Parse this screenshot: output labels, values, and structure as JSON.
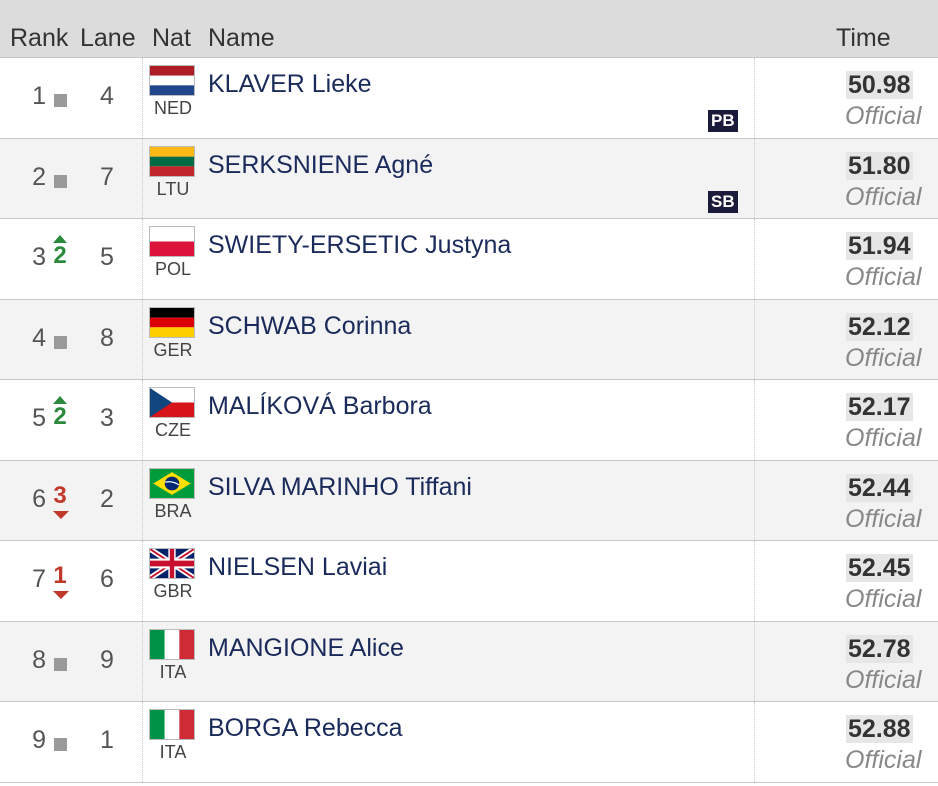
{
  "header": {
    "rank": "Rank",
    "lane": "Lane",
    "nat": "Nat",
    "name": "Name",
    "time": "Time"
  },
  "colors": {
    "up": "#2b8a3e",
    "down": "#c0392b",
    "neutral": "#9a9a9a",
    "name": "#1a2a5a"
  },
  "rows": [
    {
      "rank": "1",
      "change": {
        "dir": "same",
        "value": ""
      },
      "lane": "4",
      "flag": "netherlands-flag-icon",
      "nat": "NED",
      "name": "KLAVER Lieke",
      "badge": "PB",
      "time": "50.98",
      "status": "Official"
    },
    {
      "rank": "2",
      "change": {
        "dir": "same",
        "value": ""
      },
      "lane": "7",
      "flag": "lithuania-flag-icon",
      "nat": "LTU",
      "name": "SERKSNIENE Agné",
      "badge": "SB",
      "time": "51.80",
      "status": "Official"
    },
    {
      "rank": "3",
      "change": {
        "dir": "up",
        "value": "2"
      },
      "lane": "5",
      "flag": "poland-flag-icon",
      "nat": "POL",
      "name": "SWIETY-ERSETIC Justyna",
      "badge": "",
      "time": "51.94",
      "status": "Official"
    },
    {
      "rank": "4",
      "change": {
        "dir": "same",
        "value": ""
      },
      "lane": "8",
      "flag": "germany-flag-icon",
      "nat": "GER",
      "name": "SCHWAB Corinna",
      "badge": "",
      "time": "52.12",
      "status": "Official"
    },
    {
      "rank": "5",
      "change": {
        "dir": "up",
        "value": "2"
      },
      "lane": "3",
      "flag": "czechia-flag-icon",
      "nat": "CZE",
      "name": "MALÍKOVÁ Barbora",
      "badge": "",
      "time": "52.17",
      "status": "Official"
    },
    {
      "rank": "6",
      "change": {
        "dir": "down",
        "value": "3"
      },
      "lane": "2",
      "flag": "brazil-flag-icon",
      "nat": "BRA",
      "name": "SILVA MARINHO Tiffani",
      "badge": "",
      "time": "52.44",
      "status": "Official"
    },
    {
      "rank": "7",
      "change": {
        "dir": "down",
        "value": "1"
      },
      "lane": "6",
      "flag": "united-kingdom-flag-icon",
      "nat": "GBR",
      "name": "NIELSEN Laviai",
      "badge": "",
      "time": "52.45",
      "status": "Official"
    },
    {
      "rank": "8",
      "change": {
        "dir": "same",
        "value": ""
      },
      "lane": "9",
      "flag": "italy-flag-icon",
      "nat": "ITA",
      "name": "MANGIONE Alice",
      "badge": "",
      "time": "52.78",
      "status": "Official"
    },
    {
      "rank": "9",
      "change": {
        "dir": "same",
        "value": ""
      },
      "lane": "1",
      "flag": "italy-flag-icon",
      "nat": "ITA",
      "name": "BORGA Rebecca",
      "badge": "",
      "time": "52.88",
      "status": "Official"
    }
  ]
}
